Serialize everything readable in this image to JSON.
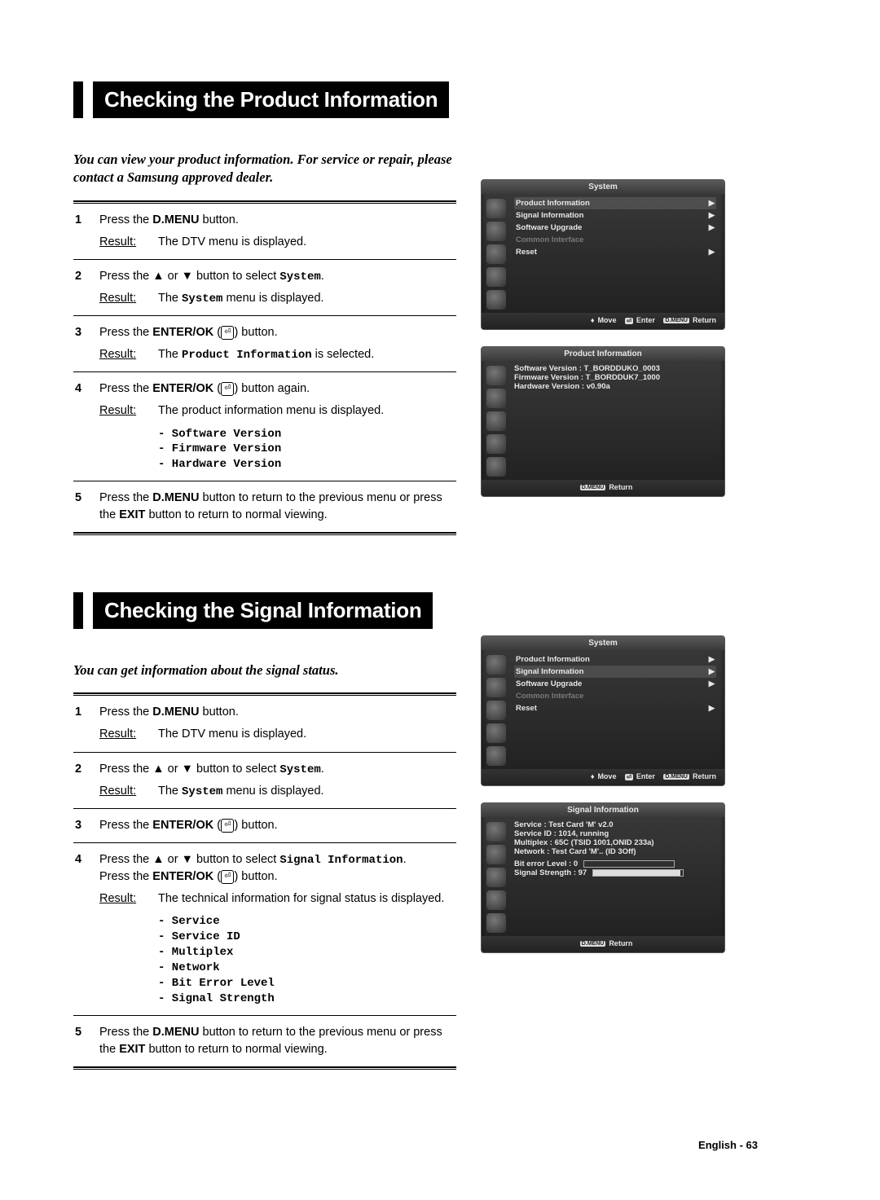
{
  "section1": {
    "title": "Checking the Product Information",
    "intro": "You can view your product information. For service or repair, please contact a Samsung approved dealer.",
    "steps": [
      {
        "num": "1",
        "instr_pre": "Press the ",
        "instr_bold": "D.MENU",
        "instr_post": " button.",
        "result_label": "Result:",
        "result": "The DTV menu is displayed."
      },
      {
        "num": "2",
        "instr_pre": "Press the ▲ or ▼ button to select ",
        "instr_mono": "System",
        "instr_post": ".",
        "result_label": "Result:",
        "result_pre": "The ",
        "result_mono": "System",
        "result_post": " menu is displayed."
      },
      {
        "num": "3",
        "instr_pre": "Press the ",
        "instr_bold": "ENTER/OK",
        "instr_post": " (",
        "instr_icon": "⏎",
        "instr_after": ") button.",
        "result_label": "Result:",
        "result_pre": "The ",
        "result_mono": "Product Information",
        "result_post": " is selected."
      },
      {
        "num": "4",
        "instr_pre": "Press the ",
        "instr_bold": "ENTER/OK",
        "instr_post": " (",
        "instr_icon": "⏎",
        "instr_after": ") button again.",
        "result_label": "Result:",
        "result": "The product information menu is displayed.",
        "list": [
          "- Software Version",
          "- Firmware Version",
          "- Hardware Version"
        ]
      },
      {
        "num": "5",
        "instr_full_1a": "Press the ",
        "instr_full_1b": "D.MENU",
        "instr_full_1c": " button to return to the previous menu or press the ",
        "instr_full_1d": "EXIT",
        "instr_full_1e": " button to return to normal viewing."
      }
    ]
  },
  "section2": {
    "title": "Checking the Signal Information",
    "intro": "You can get information about the signal status.",
    "steps": [
      {
        "num": "1",
        "instr_pre": "Press the ",
        "instr_bold": "D.MENU",
        "instr_post": " button.",
        "result_label": "Result:",
        "result": "The DTV menu is displayed."
      },
      {
        "num": "2",
        "instr_pre": "Press the ▲ or ▼ button to select ",
        "instr_mono": "System",
        "instr_post": ".",
        "result_label": "Result:",
        "result_pre": "The ",
        "result_mono": "System",
        "result_post": " menu is displayed."
      },
      {
        "num": "3",
        "instr_pre": "Press the ",
        "instr_bold": "ENTER/OK",
        "instr_post": " (",
        "instr_icon": "⏎",
        "instr_after": ") button."
      },
      {
        "num": "4",
        "line1_a": "Press the ▲ or ▼ button to select ",
        "line1_mono": "Signal Information",
        "line1_b": ".",
        "line2_a": "Press the ",
        "line2_bold": "ENTER/OK",
        "line2_b": " (",
        "line2_icon": "⏎",
        "line2_c": ") button.",
        "result_label": "Result:",
        "result": "The technical information for signal status is displayed.",
        "list": [
          "- Service",
          "- Service ID",
          "- Multiplex",
          "- Network",
          "- Bit Error Level",
          "- Signal Strength"
        ]
      },
      {
        "num": "5",
        "instr_full_1a": "Press the ",
        "instr_full_1b": "D.MENU",
        "instr_full_1c": " button to return to the previous menu or press the ",
        "instr_full_1d": "EXIT",
        "instr_full_1e": " button to return to normal viewing."
      }
    ]
  },
  "tv1": {
    "title": "System",
    "items": [
      {
        "label": "Product Information",
        "sel": true,
        "arrow": "▶"
      },
      {
        "label": "Signal Information",
        "arrow": "▶"
      },
      {
        "label": "Software Upgrade",
        "arrow": "▶"
      },
      {
        "label": "Common Interface",
        "disabled": true
      },
      {
        "label": "Reset",
        "arrow": "▶"
      }
    ],
    "footer": {
      "move": "Move",
      "enter": "Enter",
      "ret": "Return",
      "dmenu": "D.MENU"
    }
  },
  "tv2": {
    "title": "Product Information",
    "lines": [
      "Software Version : T_BORDDUKO_0003",
      "Firmware Version : T_BORDDUK7_1000",
      "Hardware Version : v0.90a"
    ],
    "footer": {
      "ret": "Return",
      "dmenu": "D.MENU"
    }
  },
  "tv3": {
    "title": "System",
    "items": [
      {
        "label": "Product Information",
        "arrow": "▶"
      },
      {
        "label": "Signal Information",
        "sel": true,
        "arrow": "▶"
      },
      {
        "label": "Software Upgrade",
        "arrow": "▶"
      },
      {
        "label": "Common Interface",
        "disabled": true
      },
      {
        "label": "Reset",
        "arrow": "▶"
      }
    ],
    "footer": {
      "move": "Move",
      "enter": "Enter",
      "ret": "Return",
      "dmenu": "D.MENU"
    }
  },
  "tv4": {
    "title": "Signal Information",
    "lines": [
      "Service : Test Card 'M' v2.0",
      "Service ID : 1014, running",
      "Multiplex : 65C (TSID 1001,ONID 233a)",
      "Network : Test Card 'M'.. (ID 3Off)"
    ],
    "bars": [
      {
        "label": "Bit error Level :",
        "value": "0",
        "pct": 0
      },
      {
        "label": "Signal Strength :",
        "value": "97",
        "pct": 97
      }
    ],
    "footer": {
      "ret": "Return",
      "dmenu": "D.MENU"
    }
  },
  "footer": "English - 63"
}
